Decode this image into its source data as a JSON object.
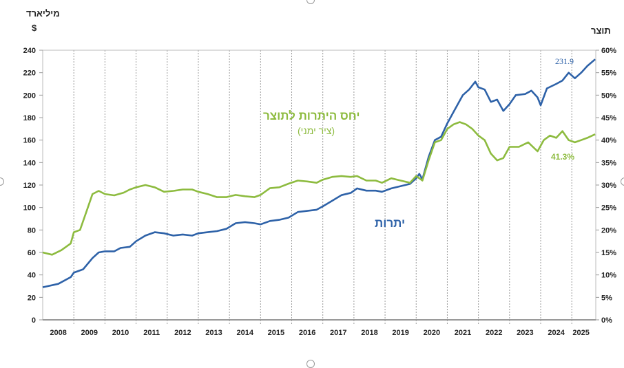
{
  "chart_data": {
    "type": "line",
    "left_axis_title": [
      "מיליארד",
      "$"
    ],
    "right_axis_title": "תוצר",
    "x_ticks": [
      "2008",
      "2009",
      "2010",
      "2011",
      "2012",
      "2013",
      "2014",
      "2015",
      "2016",
      "2017",
      "2018",
      "2019",
      "2020",
      "2021",
      "2022",
      "2023",
      "2024",
      "2025"
    ],
    "xlim": [
      2008,
      2025.77
    ],
    "ylim_left": [
      0,
      240
    ],
    "y_ticks_left": [
      "0",
      "20",
      "40",
      "60",
      "80",
      "100",
      "120",
      "140",
      "160",
      "180",
      "200",
      "220",
      "240"
    ],
    "ylim_right": [
      0,
      60
    ],
    "y_ticks_right": [
      "0%",
      "5%",
      "10%",
      "15%",
      "20%",
      "25%",
      "30%",
      "35%",
      "40%",
      "45%",
      "50%",
      "55%",
      "60%"
    ],
    "grid": "vertical dashed at year boundaries",
    "colors": {
      "reserves": "#2e62a8",
      "ratio": "#8dbb3f"
    },
    "series": [
      {
        "name": "יתרות",
        "axis": "left",
        "end_label": "231.9",
        "x": [
          2008.0,
          2008.5,
          2008.9,
          2009.0,
          2009.3,
          2009.6,
          2009.8,
          2010.0,
          2010.3,
          2010.5,
          2010.8,
          2011.0,
          2011.3,
          2011.6,
          2011.9,
          2012.2,
          2012.5,
          2012.8,
          2013.0,
          2013.3,
          2013.6,
          2013.9,
          2014.2,
          2014.5,
          2014.8,
          2015.0,
          2015.3,
          2015.6,
          2015.9,
          2016.2,
          2016.5,
          2016.8,
          2017.0,
          2017.3,
          2017.6,
          2017.9,
          2018.1,
          2018.4,
          2018.7,
          2018.9,
          2019.2,
          2019.5,
          2019.8,
          2020.0,
          2020.1,
          2020.2,
          2020.4,
          2020.6,
          2020.8,
          2021.0,
          2021.2,
          2021.5,
          2021.7,
          2021.9,
          2022.0,
          2022.2,
          2022.4,
          2022.6,
          2022.8,
          2023.0,
          2023.2,
          2023.5,
          2023.7,
          2023.9,
          2024.0,
          2024.2,
          2024.5,
          2024.7,
          2024.9,
          2025.1,
          2025.3,
          2025.5,
          2025.75
        ],
        "values": [
          29,
          32,
          38,
          42,
          45,
          55,
          60,
          61,
          61,
          64,
          65,
          70,
          75,
          78,
          77,
          75,
          76,
          75,
          77,
          78,
          79,
          81,
          86,
          87,
          86,
          85,
          88,
          89,
          91,
          96,
          97,
          98,
          101,
          106,
          111,
          113,
          117,
          115,
          115,
          114,
          117,
          119,
          121,
          126,
          130,
          125,
          145,
          160,
          163,
          175,
          185,
          200,
          205,
          212,
          207,
          205,
          194,
          196,
          186,
          192,
          200,
          201,
          204,
          198,
          191,
          206,
          210,
          213,
          220,
          215,
          220,
          226,
          231.9
        ]
      },
      {
        "name": "יחס היתרות לתוצר",
        "subtitle": "(ציר ימני)",
        "axis": "right",
        "end_label": "41.3%",
        "x": [
          2008.0,
          2008.3,
          2008.6,
          2008.9,
          2009.0,
          2009.2,
          2009.4,
          2009.6,
          2009.8,
          2010.0,
          2010.3,
          2010.6,
          2010.8,
          2011.0,
          2011.3,
          2011.6,
          2011.9,
          2012.2,
          2012.5,
          2012.8,
          2013.0,
          2013.3,
          2013.6,
          2013.9,
          2014.2,
          2014.5,
          2014.8,
          2015.0,
          2015.3,
          2015.6,
          2015.9,
          2016.2,
          2016.5,
          2016.8,
          2017.0,
          2017.3,
          2017.6,
          2017.9,
          2018.1,
          2018.4,
          2018.7,
          2018.9,
          2019.2,
          2019.5,
          2019.8,
          2020.0,
          2020.2,
          2020.4,
          2020.6,
          2020.8,
          2021.0,
          2021.2,
          2021.4,
          2021.6,
          2021.8,
          2022.0,
          2022.2,
          2022.4,
          2022.6,
          2022.8,
          2023.0,
          2023.3,
          2023.6,
          2023.9,
          2024.1,
          2024.3,
          2024.5,
          2024.7,
          2024.9,
          2025.1,
          2025.3,
          2025.5,
          2025.75
        ],
        "values": [
          15,
          14.5,
          15.5,
          17,
          19.5,
          20,
          24,
          28,
          28.7,
          28,
          27.7,
          28.3,
          29,
          29.5,
          30,
          29.5,
          28.5,
          28.7,
          29,
          29,
          28.5,
          28,
          27.3,
          27.3,
          27.8,
          27.5,
          27.3,
          27.8,
          29.3,
          29.5,
          30.3,
          31,
          30.8,
          30.5,
          31.2,
          31.8,
          32,
          31.8,
          32,
          31,
          31,
          30.5,
          31.5,
          31,
          30.5,
          32,
          31,
          35.5,
          39.5,
          40,
          42.5,
          43.5,
          44,
          43.5,
          42.5,
          41,
          40,
          37,
          35.5,
          36,
          38.5,
          38.5,
          39.5,
          37.5,
          40,
          41,
          40.5,
          42,
          40,
          39.5,
          40,
          40.5,
          41.3
        ]
      }
    ]
  }
}
